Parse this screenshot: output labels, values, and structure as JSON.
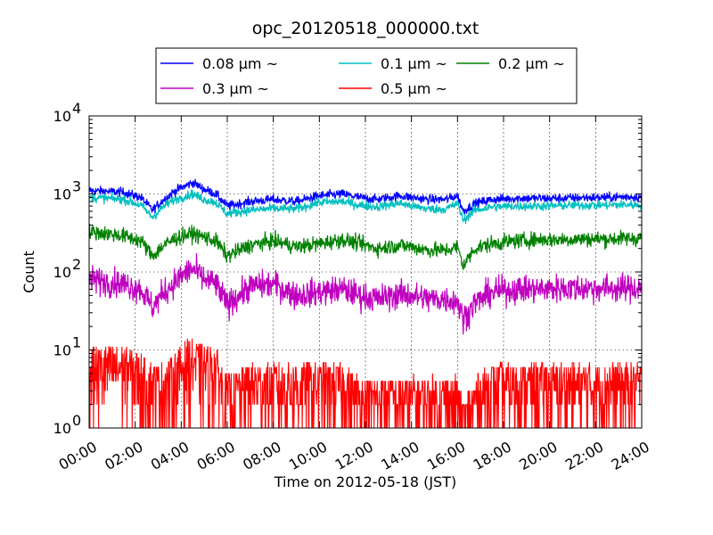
{
  "chart_data": {
    "type": "line",
    "title": "opc_20120518_000000.txt",
    "xlabel": "Time on 2012-05-18 (JST)",
    "ylabel": "Count",
    "x_scale": "time",
    "xlim": [
      "00:00",
      "24:00"
    ],
    "x_ticks": [
      "00:00",
      "02:00",
      "04:00",
      "06:00",
      "08:00",
      "10:00",
      "12:00",
      "14:00",
      "16:00",
      "18:00",
      "20:00",
      "22:00",
      "24:00"
    ],
    "y_scale": "log",
    "ylim": [
      1,
      10000
    ],
    "y_ticks": [
      {
        "value": 1,
        "label": "10",
        "exp": "0"
      },
      {
        "value": 10,
        "label": "10",
        "exp": "1"
      },
      {
        "value": 100,
        "label": "10",
        "exp": "2"
      },
      {
        "value": 1000,
        "label": "10",
        "exp": "3"
      },
      {
        "value": 10000,
        "label": "10",
        "exp": "4"
      }
    ],
    "grid": true,
    "legend_position": "top-center",
    "legend_columns": 3,
    "series": [
      {
        "name": "0.08 μm ~",
        "color": "#0000ff",
        "x": [
          "00:00",
          "00:45",
          "01:30",
          "02:15",
          "02:45",
          "03:15",
          "03:45",
          "04:15",
          "04:30",
          "05:00",
          "05:30",
          "06:00",
          "07:00",
          "08:00",
          "09:00",
          "10:00",
          "11:00",
          "11:45",
          "12:30",
          "13:00",
          "13:30",
          "14:00",
          "14:45",
          "15:30",
          "16:00",
          "16:15",
          "16:45",
          "17:30",
          "18:30",
          "19:30",
          "20:30",
          "21:30",
          "22:30",
          "23:30",
          "24:00"
        ],
        "values": [
          1100,
          1080,
          1050,
          900,
          620,
          850,
          1100,
          1300,
          1400,
          1150,
          1000,
          700,
          800,
          850,
          800,
          950,
          1000,
          900,
          850,
          900,
          950,
          900,
          850,
          850,
          950,
          600,
          750,
          850,
          880,
          880,
          880,
          900,
          900,
          920,
          910
        ]
      },
      {
        "name": "0.1 μm ~",
        "color": "#00bfbf",
        "x": [
          "00:00",
          "00:45",
          "01:30",
          "02:15",
          "02:45",
          "03:15",
          "03:45",
          "04:15",
          "04:30",
          "05:00",
          "05:30",
          "06:00",
          "07:00",
          "08:00",
          "09:00",
          "10:00",
          "11:00",
          "11:45",
          "12:30",
          "13:00",
          "13:30",
          "14:00",
          "14:45",
          "15:30",
          "16:00",
          "16:15",
          "16:45",
          "17:30",
          "18:30",
          "19:30",
          "20:30",
          "21:30",
          "22:30",
          "23:30",
          "24:00"
        ],
        "values": [
          900,
          880,
          850,
          720,
          500,
          700,
          850,
          950,
          1000,
          850,
          780,
          560,
          620,
          650,
          640,
          780,
          800,
          720,
          680,
          720,
          760,
          700,
          640,
          640,
          760,
          460,
          620,
          680,
          700,
          700,
          710,
          720,
          720,
          730,
          720
        ]
      },
      {
        "name": "0.2 μm ~",
        "color": "#008000",
        "x": [
          "00:00",
          "00:45",
          "01:30",
          "02:15",
          "02:45",
          "03:15",
          "03:45",
          "04:15",
          "04:30",
          "05:00",
          "05:30",
          "06:00",
          "07:00",
          "08:00",
          "09:00",
          "10:00",
          "11:00",
          "11:45",
          "12:30",
          "13:00",
          "13:30",
          "14:00",
          "14:45",
          "15:30",
          "16:00",
          "16:15",
          "16:45",
          "17:30",
          "18:30",
          "19:30",
          "20:30",
          "21:30",
          "22:30",
          "23:30",
          "24:00"
        ],
        "values": [
          330,
          310,
          290,
          250,
          160,
          220,
          270,
          300,
          310,
          280,
          250,
          160,
          220,
          250,
          210,
          230,
          260,
          230,
          200,
          210,
          220,
          210,
          190,
          190,
          210,
          120,
          200,
          230,
          250,
          260,
          260,
          265,
          265,
          270,
          270
        ]
      },
      {
        "name": "0.3 μm ~",
        "color": "#bf00bf",
        "x": [
          "00:00",
          "00:45",
          "01:30",
          "02:15",
          "02:45",
          "03:15",
          "03:45",
          "04:15",
          "04:30",
          "05:00",
          "05:30",
          "06:00",
          "07:00",
          "08:00",
          "09:00",
          "10:00",
          "11:00",
          "11:45",
          "12:30",
          "13:00",
          "13:30",
          "14:00",
          "14:45",
          "15:30",
          "16:00",
          "16:15",
          "16:45",
          "17:30",
          "18:30",
          "19:30",
          "20:30",
          "21:30",
          "22:30",
          "23:30",
          "24:00"
        ],
        "values": [
          80,
          75,
          70,
          60,
          35,
          55,
          75,
          100,
          110,
          80,
          70,
          38,
          65,
          70,
          50,
          55,
          60,
          50,
          45,
          48,
          52,
          50,
          45,
          45,
          42,
          25,
          40,
          55,
          60,
          60,
          62,
          62,
          62,
          62,
          62
        ]
      },
      {
        "name": "0.5 μm ~",
        "color": "#ff0000",
        "x": [
          "00:00",
          "00:45",
          "01:30",
          "02:15",
          "02:45",
          "03:15",
          "03:45",
          "04:15",
          "04:30",
          "05:00",
          "05:30",
          "06:00",
          "07:00",
          "08:00",
          "09:00",
          "10:00",
          "11:00",
          "11:45",
          "12:30",
          "13:00",
          "13:30",
          "14:00",
          "14:45",
          "15:30",
          "16:00",
          "16:15",
          "16:45",
          "17:30",
          "18:30",
          "19:30",
          "20:30",
          "21:30",
          "22:30",
          "23:30",
          "24:00"
        ],
        "values": [
          5,
          5,
          5,
          4,
          3,
          3,
          4,
          6,
          6,
          5,
          5,
          2,
          3,
          3,
          3,
          3,
          3,
          2,
          2,
          2,
          2,
          2,
          2,
          2,
          2,
          1,
          2,
          3,
          3,
          3,
          3,
          3,
          3,
          3,
          3
        ]
      }
    ]
  }
}
